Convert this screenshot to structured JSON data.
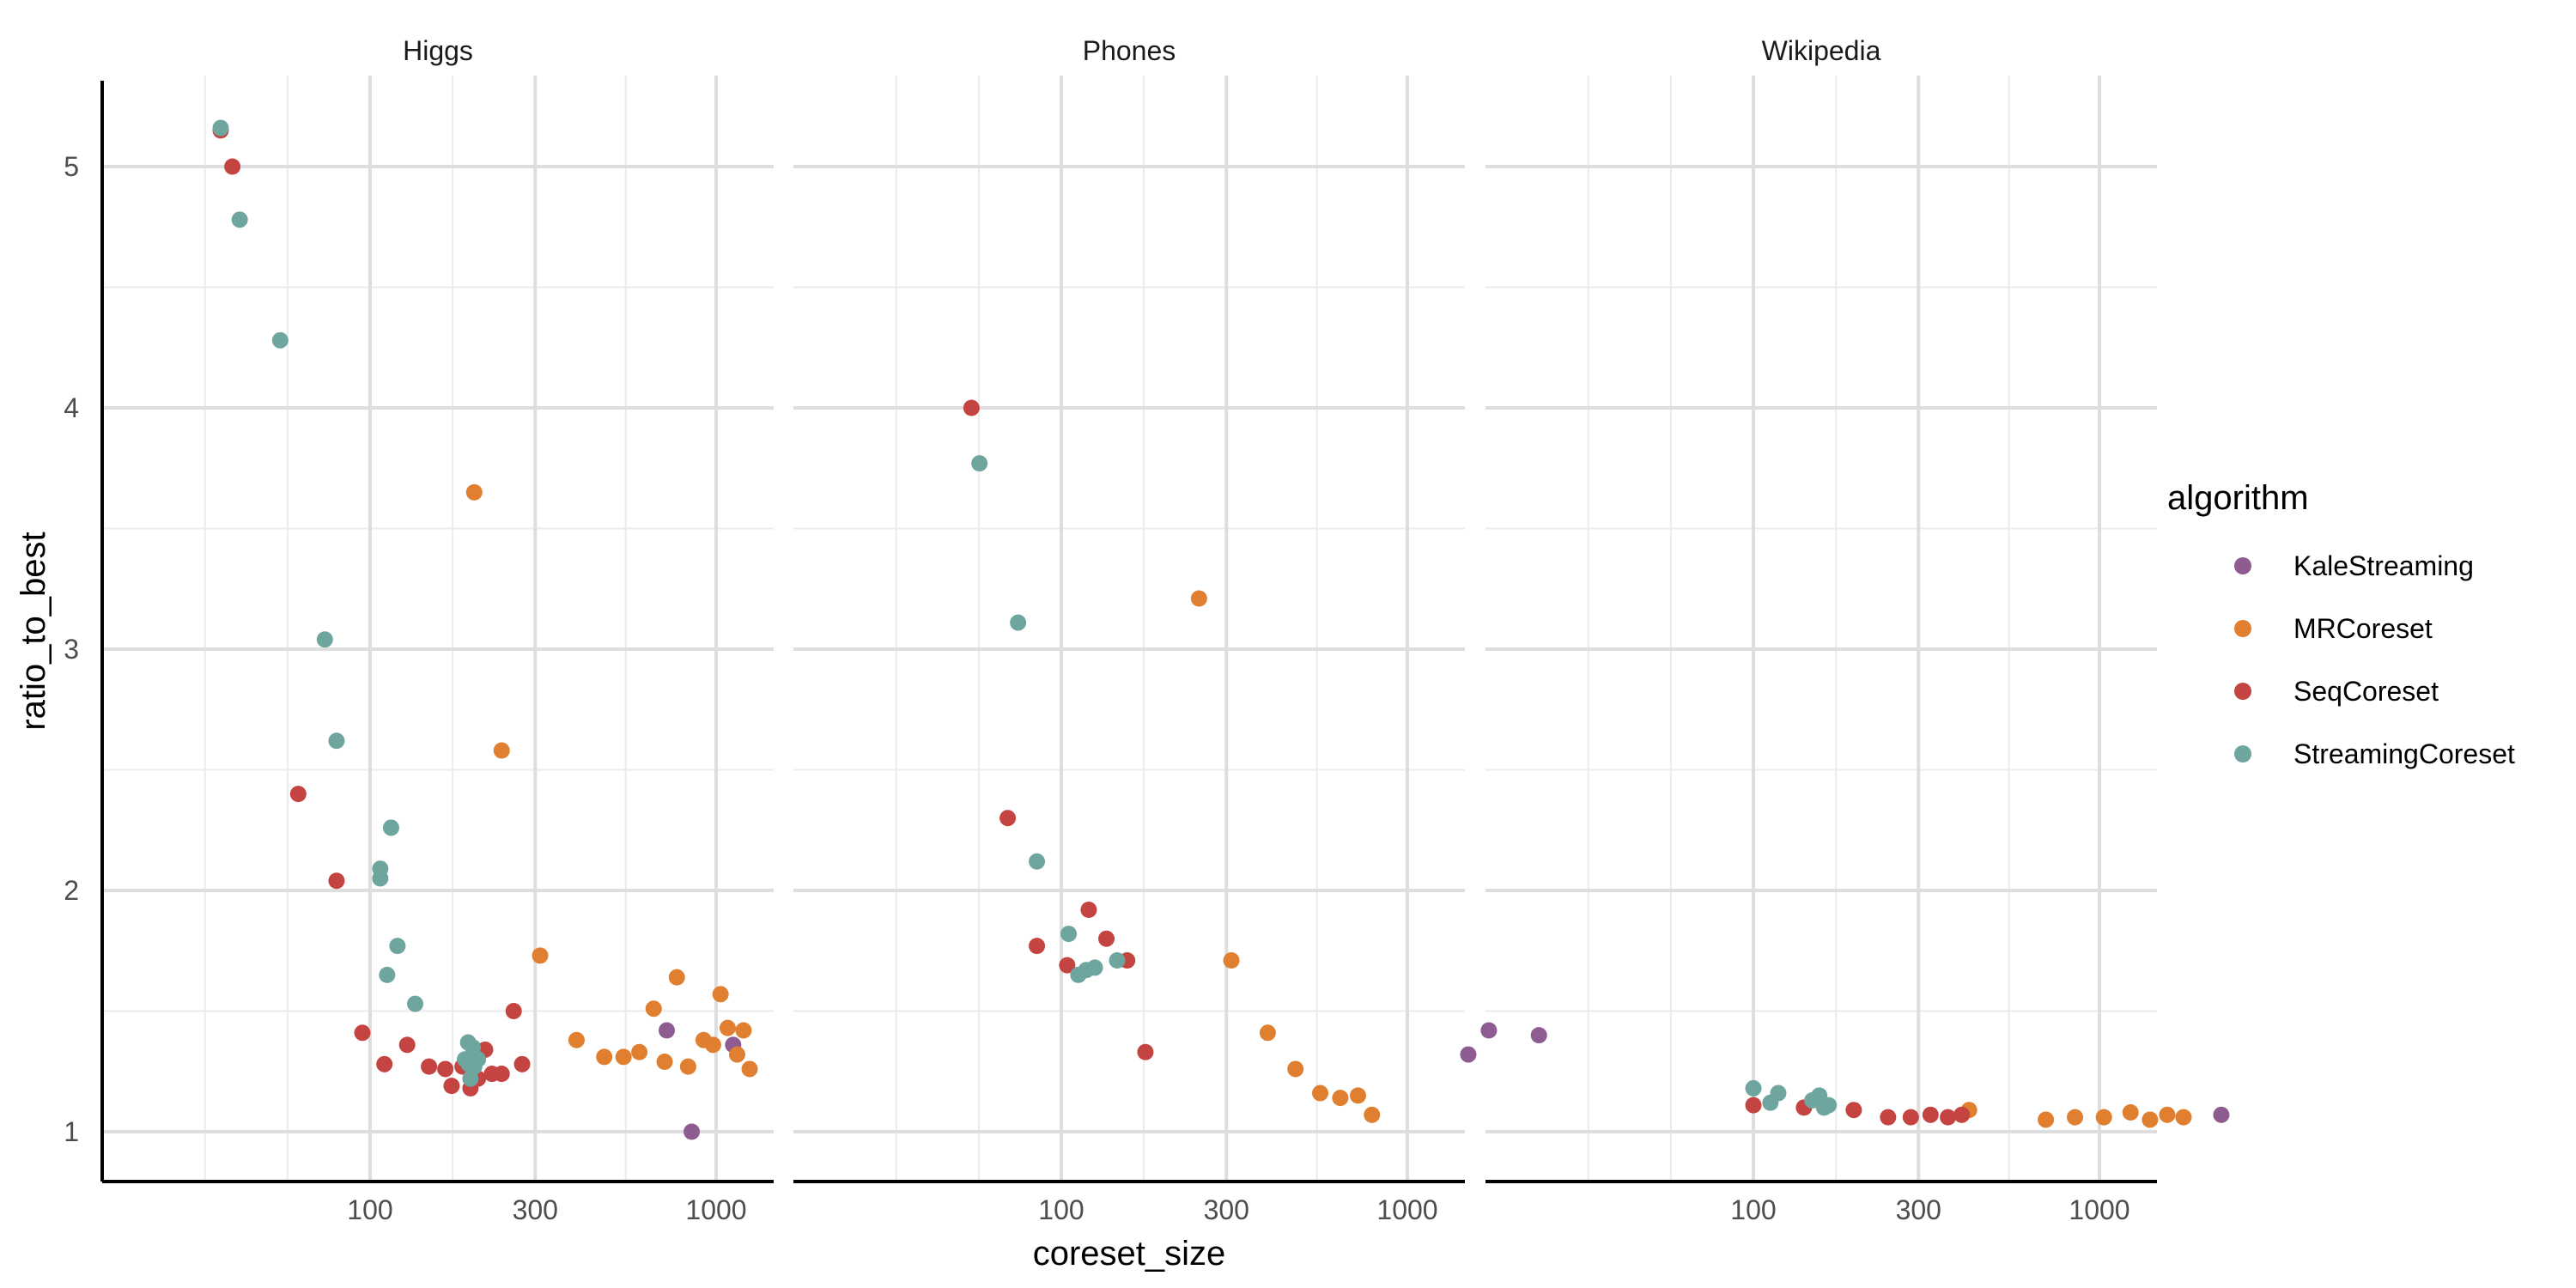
{
  "chart_data": {
    "type": "scatter",
    "facet_by": "dataset",
    "panels": [
      "Higgs",
      "Phones",
      "Wikipedia"
    ],
    "xlabel": "coreset_size",
    "ylabel": "ratio_to_best",
    "x_scale": "log10",
    "x_ticks": [
      100,
      300,
      1000
    ],
    "y_ticks": [
      1,
      2,
      3,
      4,
      5
    ],
    "xlim": [
      30,
      2800
    ],
    "ylim": [
      0.8,
      5.3
    ],
    "grid": true,
    "legend": {
      "title": "algorithm",
      "placement": "right",
      "entries": [
        "KaleStreaming",
        "MRCoreset",
        "SeqCoreset",
        "StreamingCoreset"
      ]
    },
    "colors": {
      "KaleStreaming": "#8e5c91",
      "MRCoreset": "#df7f2f",
      "SeqCoreset": "#c44441",
      "StreamingCoreset": "#6fa59f"
    },
    "series": [
      {
        "name": "KaleStreaming",
        "points": [
          {
            "panel": "Higgs",
            "x": 720,
            "y": 1.42
          },
          {
            "panel": "Higgs",
            "x": 850,
            "y": 1.0
          },
          {
            "panel": "Higgs",
            "x": 1120,
            "y": 1.36
          },
          {
            "panel": "Phones",
            "x": 1500,
            "y": 1.32
          },
          {
            "panel": "Phones",
            "x": 1720,
            "y": 1.42
          },
          {
            "panel": "Phones",
            "x": 2400,
            "y": 1.4
          },
          {
            "panel": "Wikipedia",
            "x": 2250,
            "y": 1.07
          }
        ]
      },
      {
        "name": "MRCoreset",
        "points": [
          {
            "panel": "Higgs",
            "x": 200,
            "y": 3.65
          },
          {
            "panel": "Higgs",
            "x": 240,
            "y": 2.58
          },
          {
            "panel": "Higgs",
            "x": 310,
            "y": 1.73
          },
          {
            "panel": "Higgs",
            "x": 395,
            "y": 1.38
          },
          {
            "panel": "Higgs",
            "x": 475,
            "y": 1.31
          },
          {
            "panel": "Higgs",
            "x": 540,
            "y": 1.31
          },
          {
            "panel": "Higgs",
            "x": 600,
            "y": 1.33
          },
          {
            "panel": "Higgs",
            "x": 660,
            "y": 1.51
          },
          {
            "panel": "Higgs",
            "x": 710,
            "y": 1.29
          },
          {
            "panel": "Higgs",
            "x": 770,
            "y": 1.64
          },
          {
            "panel": "Higgs",
            "x": 830,
            "y": 1.27
          },
          {
            "panel": "Higgs",
            "x": 920,
            "y": 1.38
          },
          {
            "panel": "Higgs",
            "x": 980,
            "y": 1.36
          },
          {
            "panel": "Higgs",
            "x": 1030,
            "y": 1.57
          },
          {
            "panel": "Higgs",
            "x": 1080,
            "y": 1.43
          },
          {
            "panel": "Higgs",
            "x": 1150,
            "y": 1.32
          },
          {
            "panel": "Higgs",
            "x": 1200,
            "y": 1.42
          },
          {
            "panel": "Higgs",
            "x": 1250,
            "y": 1.26
          },
          {
            "panel": "Phones",
            "x": 250,
            "y": 3.21
          },
          {
            "panel": "Phones",
            "x": 310,
            "y": 1.71
          },
          {
            "panel": "Phones",
            "x": 395,
            "y": 1.41
          },
          {
            "panel": "Phones",
            "x": 475,
            "y": 1.26
          },
          {
            "panel": "Phones",
            "x": 560,
            "y": 1.16
          },
          {
            "panel": "Phones",
            "x": 640,
            "y": 1.14
          },
          {
            "panel": "Phones",
            "x": 720,
            "y": 1.15
          },
          {
            "panel": "Phones",
            "x": 790,
            "y": 1.07
          },
          {
            "panel": "Wikipedia",
            "x": 420,
            "y": 1.09
          },
          {
            "panel": "Wikipedia",
            "x": 700,
            "y": 1.05
          },
          {
            "panel": "Wikipedia",
            "x": 850,
            "y": 1.06
          },
          {
            "panel": "Wikipedia",
            "x": 1030,
            "y": 1.06
          },
          {
            "panel": "Wikipedia",
            "x": 1230,
            "y": 1.08
          },
          {
            "panel": "Wikipedia",
            "x": 1400,
            "y": 1.05
          },
          {
            "panel": "Wikipedia",
            "x": 1570,
            "y": 1.07
          },
          {
            "panel": "Wikipedia",
            "x": 1750,
            "y": 1.06
          }
        ]
      },
      {
        "name": "SeqCoreset",
        "points": [
          {
            "panel": "Higgs",
            "x": 37,
            "y": 5.15
          },
          {
            "panel": "Higgs",
            "x": 40,
            "y": 5.0
          },
          {
            "panel": "Higgs",
            "x": 62,
            "y": 2.4
          },
          {
            "panel": "Higgs",
            "x": 80,
            "y": 2.04
          },
          {
            "panel": "Higgs",
            "x": 95,
            "y": 1.41
          },
          {
            "panel": "Higgs",
            "x": 110,
            "y": 1.28
          },
          {
            "panel": "Higgs",
            "x": 128,
            "y": 1.36
          },
          {
            "panel": "Higgs",
            "x": 148,
            "y": 1.27
          },
          {
            "panel": "Higgs",
            "x": 165,
            "y": 1.26
          },
          {
            "panel": "Higgs",
            "x": 172,
            "y": 1.19
          },
          {
            "panel": "Higgs",
            "x": 185,
            "y": 1.27
          },
          {
            "panel": "Higgs",
            "x": 195,
            "y": 1.18
          },
          {
            "panel": "Higgs",
            "x": 205,
            "y": 1.22
          },
          {
            "panel": "Higgs",
            "x": 215,
            "y": 1.34
          },
          {
            "panel": "Higgs",
            "x": 225,
            "y": 1.24
          },
          {
            "panel": "Higgs",
            "x": 240,
            "y": 1.24
          },
          {
            "panel": "Higgs",
            "x": 260,
            "y": 1.5
          },
          {
            "panel": "Higgs",
            "x": 275,
            "y": 1.28
          },
          {
            "panel": "Phones",
            "x": 55,
            "y": 4.0
          },
          {
            "panel": "Phones",
            "x": 70,
            "y": 2.3
          },
          {
            "panel": "Phones",
            "x": 85,
            "y": 1.77
          },
          {
            "panel": "Phones",
            "x": 104,
            "y": 1.69
          },
          {
            "panel": "Phones",
            "x": 120,
            "y": 1.92
          },
          {
            "panel": "Phones",
            "x": 135,
            "y": 1.8
          },
          {
            "panel": "Phones",
            "x": 155,
            "y": 1.71
          },
          {
            "panel": "Phones",
            "x": 175,
            "y": 1.33
          },
          {
            "panel": "Wikipedia",
            "x": 100,
            "y": 1.11
          },
          {
            "panel": "Wikipedia",
            "x": 140,
            "y": 1.1
          },
          {
            "panel": "Wikipedia",
            "x": 195,
            "y": 1.09
          },
          {
            "panel": "Wikipedia",
            "x": 245,
            "y": 1.06
          },
          {
            "panel": "Wikipedia",
            "x": 285,
            "y": 1.06
          },
          {
            "panel": "Wikipedia",
            "x": 325,
            "y": 1.07
          },
          {
            "panel": "Wikipedia",
            "x": 365,
            "y": 1.06
          },
          {
            "panel": "Wikipedia",
            "x": 400,
            "y": 1.07
          }
        ]
      },
      {
        "name": "StreamingCoreset",
        "points": [
          {
            "panel": "Higgs",
            "x": 37,
            "y": 5.16
          },
          {
            "panel": "Higgs",
            "x": 42,
            "y": 4.78
          },
          {
            "panel": "Higgs",
            "x": 55,
            "y": 4.28
          },
          {
            "panel": "Higgs",
            "x": 74,
            "y": 3.04
          },
          {
            "panel": "Higgs",
            "x": 80,
            "y": 2.62
          },
          {
            "panel": "Higgs",
            "x": 107,
            "y": 2.09
          },
          {
            "panel": "Higgs",
            "x": 107,
            "y": 2.05
          },
          {
            "panel": "Higgs",
            "x": 115,
            "y": 2.26
          },
          {
            "panel": "Higgs",
            "x": 112,
            "y": 1.65
          },
          {
            "panel": "Higgs",
            "x": 120,
            "y": 1.77
          },
          {
            "panel": "Higgs",
            "x": 135,
            "y": 1.53
          },
          {
            "panel": "Higgs",
            "x": 192,
            "y": 1.37
          },
          {
            "panel": "Higgs",
            "x": 198,
            "y": 1.35
          },
          {
            "panel": "Higgs",
            "x": 188,
            "y": 1.3
          },
          {
            "panel": "Higgs",
            "x": 193,
            "y": 1.28
          },
          {
            "panel": "Higgs",
            "x": 200,
            "y": 1.27
          },
          {
            "panel": "Higgs",
            "x": 205,
            "y": 1.3
          },
          {
            "panel": "Higgs",
            "x": 195,
            "y": 1.22
          },
          {
            "panel": "Phones",
            "x": 58,
            "y": 3.77
          },
          {
            "panel": "Phones",
            "x": 75,
            "y": 3.11
          },
          {
            "panel": "Phones",
            "x": 85,
            "y": 2.12
          },
          {
            "panel": "Phones",
            "x": 105,
            "y": 1.82
          },
          {
            "panel": "Phones",
            "x": 112,
            "y": 1.65
          },
          {
            "panel": "Phones",
            "x": 118,
            "y": 1.67
          },
          {
            "panel": "Phones",
            "x": 125,
            "y": 1.68
          },
          {
            "panel": "Phones",
            "x": 145,
            "y": 1.71
          },
          {
            "panel": "Wikipedia",
            "x": 100,
            "y": 1.18
          },
          {
            "panel": "Wikipedia",
            "x": 112,
            "y": 1.12
          },
          {
            "panel": "Wikipedia",
            "x": 118,
            "y": 1.16
          },
          {
            "panel": "Wikipedia",
            "x": 148,
            "y": 1.13
          },
          {
            "panel": "Wikipedia",
            "x": 155,
            "y": 1.15
          },
          {
            "panel": "Wikipedia",
            "x": 160,
            "y": 1.1
          },
          {
            "panel": "Wikipedia",
            "x": 165,
            "y": 1.11
          }
        ]
      }
    ]
  }
}
